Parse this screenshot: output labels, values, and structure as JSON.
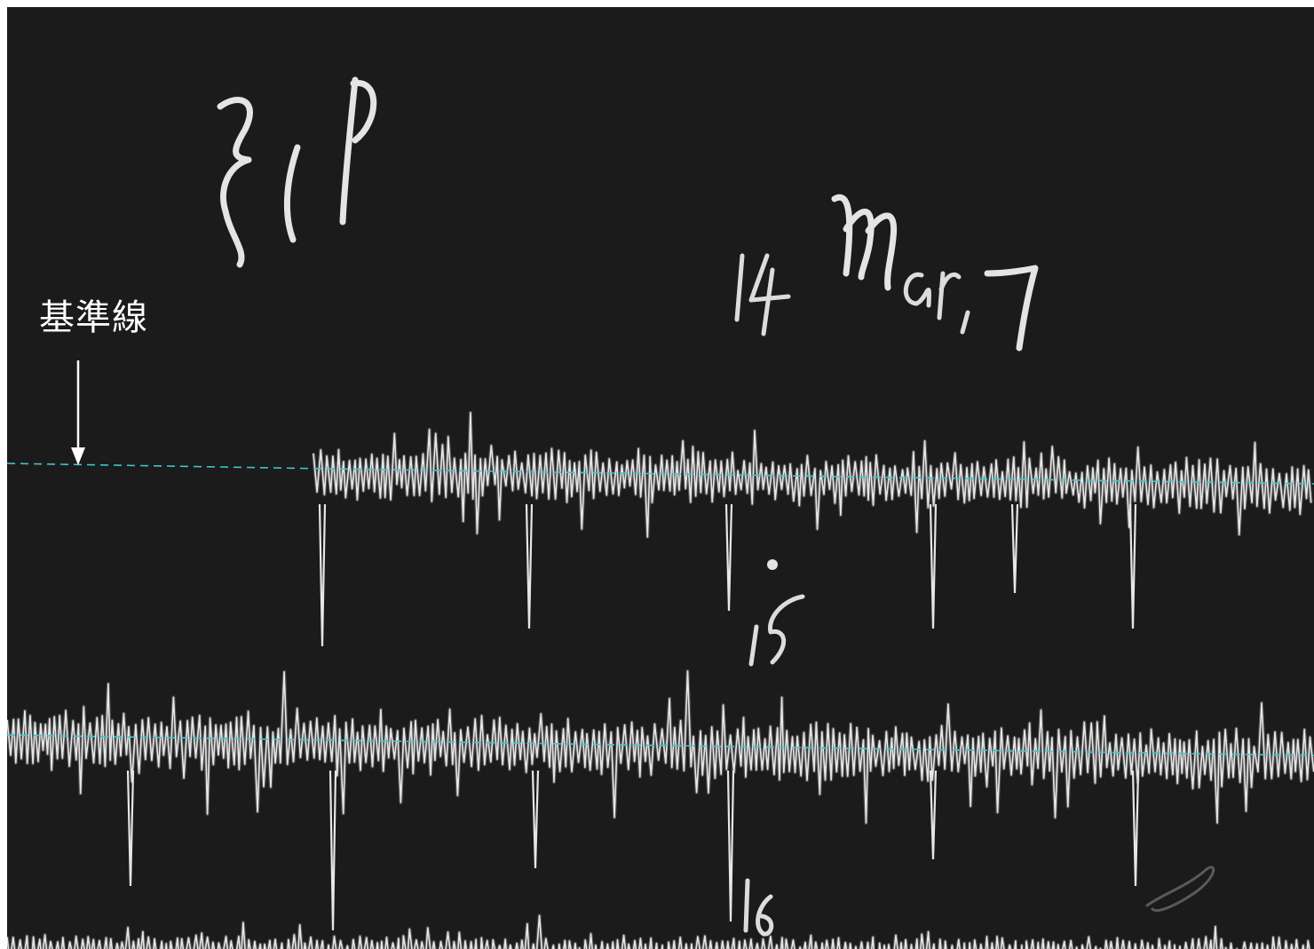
{
  "annotation": {
    "label": "基準線",
    "arrow_icon": "down-arrow-icon"
  },
  "colors": {
    "film_background": "#1b1b1b",
    "trace": "#e6e6e6",
    "baseline": "#40c8d0",
    "annotation_text": "#ffffff"
  },
  "handwriting": {
    "station_code": "ZIP",
    "date": "14 Mar, 7",
    "hour_mark_1": "15",
    "hour_mark_2": "16"
  },
  "traces": {
    "count": 3,
    "rendering": "seismogram-style oscillating trace on dark film"
  }
}
